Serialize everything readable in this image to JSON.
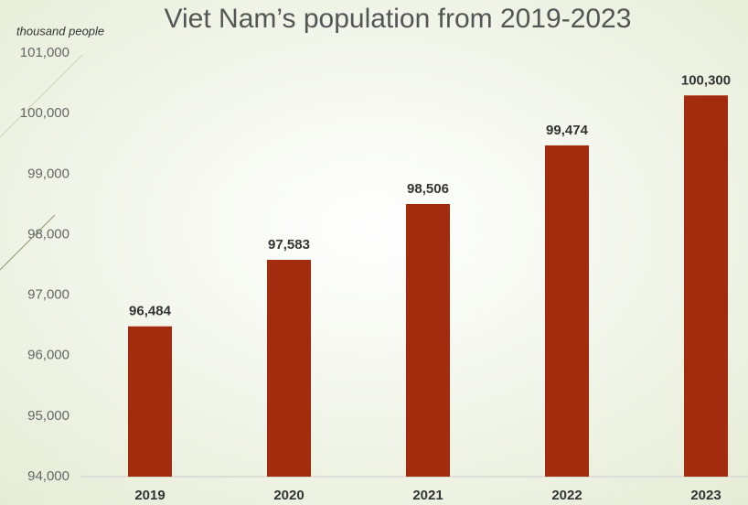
{
  "chart_data": {
    "type": "bar",
    "title": "Viet Nam’s population from 2019-2023",
    "y_axis_label": "thousand people",
    "categories": [
      "2019",
      "2020",
      "2021",
      "2022",
      "2023"
    ],
    "values": [
      96484,
      97583,
      98506,
      99474,
      100300
    ],
    "value_labels": [
      "96,484",
      "97,583",
      "98,506",
      "99,474",
      "100,300"
    ],
    "color": "#a32b0e",
    "ylim": [
      94000,
      101000
    ],
    "yticks": [
      {
        "value": 94000,
        "label": "94,000"
      },
      {
        "value": 95000,
        "label": "95,000"
      },
      {
        "value": 96000,
        "label": "96,000"
      },
      {
        "value": 97000,
        "label": "97,000"
      },
      {
        "value": 98000,
        "label": "98,000"
      },
      {
        "value": 99000,
        "label": "99,000"
      },
      {
        "value": 100000,
        "label": "100,000"
      },
      {
        "value": 101000,
        "label": "101,000"
      }
    ],
    "grid": false
  }
}
